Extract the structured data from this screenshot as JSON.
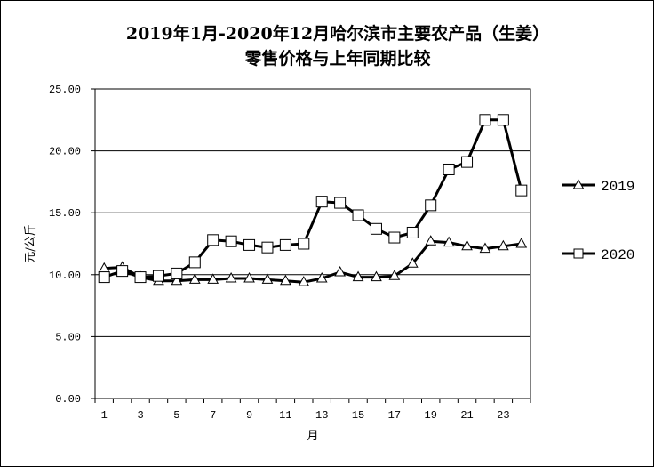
{
  "chart_data": {
    "type": "line",
    "title_line1": "2019年1月-2020年12月哈尔滨市主要农产品（生姜）",
    "title_line2": "零售价格与上年同期比较",
    "ylabel": "元/公斤",
    "xlabel": "月",
    "ylim": [
      0,
      25
    ],
    "y_ticks": [
      "0.00",
      "5.00",
      "10.00",
      "15.00",
      "20.00",
      "25.00"
    ],
    "x": [
      1,
      2,
      3,
      4,
      5,
      6,
      7,
      8,
      9,
      10,
      11,
      12,
      13,
      14,
      15,
      16,
      17,
      18,
      19,
      20,
      21,
      22,
      23,
      24
    ],
    "x_tick_labels": [
      "1",
      "3",
      "5",
      "7",
      "9",
      "11",
      "13",
      "15",
      "17",
      "19",
      "21",
      "23"
    ],
    "series": [
      {
        "name": "2019",
        "marker": "triangle",
        "values": [
          10.5,
          10.6,
          9.8,
          9.5,
          9.5,
          9.6,
          9.6,
          9.7,
          9.7,
          9.6,
          9.5,
          9.4,
          9.7,
          10.2,
          9.8,
          9.8,
          9.9,
          10.9,
          12.7,
          12.6,
          12.3,
          12.1,
          12.3,
          12.5
        ]
      },
      {
        "name": "2020",
        "marker": "square",
        "values": [
          9.8,
          10.3,
          9.8,
          9.9,
          10.1,
          11.0,
          12.8,
          12.7,
          12.4,
          12.2,
          12.4,
          12.5,
          15.9,
          15.8,
          14.8,
          13.7,
          13.0,
          13.4,
          15.6,
          18.5,
          19.1,
          22.5,
          22.5,
          16.8
        ]
      }
    ]
  }
}
